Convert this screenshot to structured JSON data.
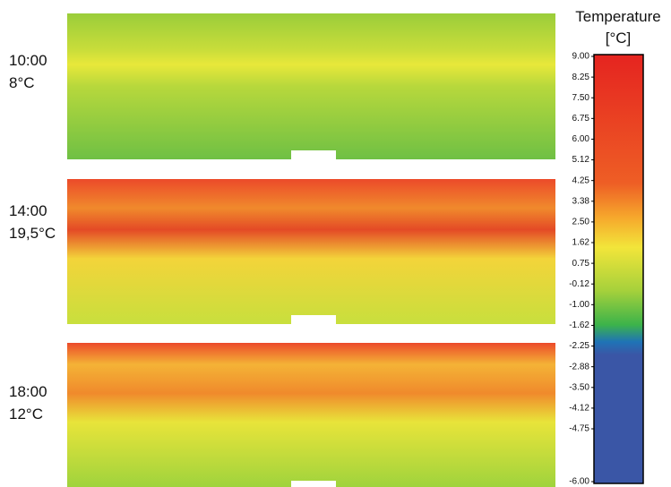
{
  "panels": [
    {
      "time": "10:00",
      "temperature": "8°C"
    },
    {
      "time": "14:00",
      "temperature": "19,5°C"
    },
    {
      "time": "18:00",
      "temperature": "12°C"
    }
  ],
  "colorbar": {
    "title": "Temperature",
    "unit": "[°C]",
    "ticks": [
      {
        "value": 9,
        "label": "9.00"
      },
      8.25,
      {
        "value": 7.5,
        "label": "7.50"
      },
      6.75,
      {
        "value": 6,
        "label": "6.00"
      },
      5.12,
      4.25,
      3.38,
      {
        "value": 2.5,
        "label": "2.50"
      },
      1.62,
      0.75,
      -0.12,
      {
        "value": -1,
        "label": "-1.00"
      },
      -1.62,
      -2.25,
      -2.88,
      {
        "value": -3.5,
        "label": "-3.50"
      },
      -4.12,
      -4.75,
      {
        "value": -6,
        "label": "-6.00"
      }
    ]
  }
}
